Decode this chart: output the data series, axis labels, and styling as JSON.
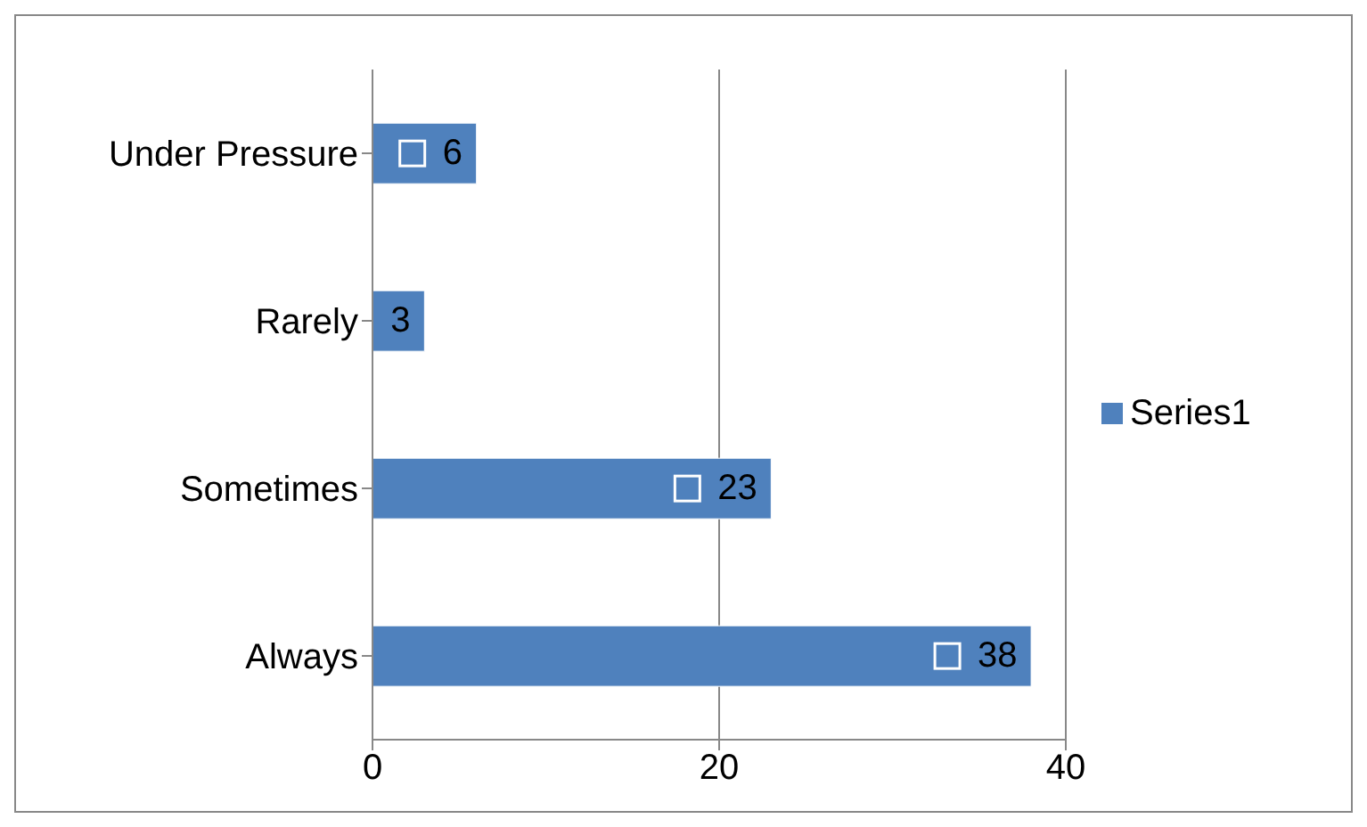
{
  "chart_data": {
    "type": "bar",
    "orientation": "horizontal",
    "categories": [
      "Under Pressure",
      "Rarely",
      "Sometimes",
      "Always"
    ],
    "series": [
      {
        "name": "Series1",
        "color": "#4f81bd",
        "values": [
          6,
          3,
          23,
          38
        ]
      }
    ],
    "xlim": [
      0,
      40
    ],
    "xticks": [
      0,
      20,
      40
    ],
    "grid": "x",
    "legend": "right",
    "data_labels": true
  }
}
